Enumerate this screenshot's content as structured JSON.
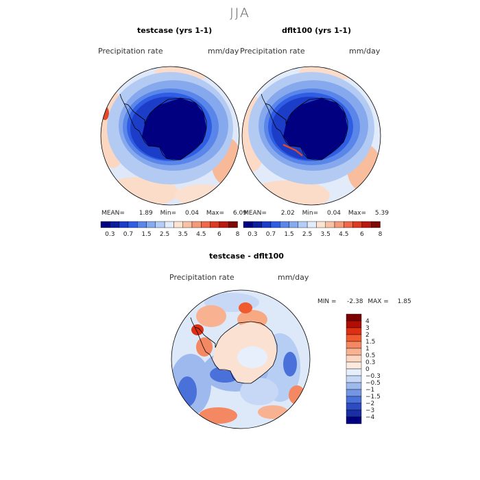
{
  "title": "JJA",
  "panels": [
    {
      "id": "testcase",
      "title": "testcase (yrs 1-1)",
      "variable": "Precipitation rate",
      "units": "mm/day",
      "stats": {
        "mean_label": "MEAN=",
        "mean": "1.89",
        "min_label": "Min=",
        "min": "0.04",
        "max_label": "Max=",
        "max": "6.09"
      }
    },
    {
      "id": "dflt100",
      "title": "dflt100 (yrs 1-1)",
      "variable": "Precipitation rate",
      "units": "mm/day",
      "stats": {
        "mean_label": "MEAN=",
        "mean": "2.02",
        "min_label": "Min=",
        "min": "0.04",
        "max_label": "Max=",
        "max": "5.39"
      }
    },
    {
      "id": "diff",
      "title": "testcase - dflt100",
      "variable": "Precipitation rate",
      "units": "mm/day",
      "stats": {
        "min_label": "MIN =",
        "min": "-2.38",
        "max_label": "MAX =",
        "max": "1.85"
      }
    }
  ],
  "colorbar_abs": {
    "colors": [
      "#000080",
      "#0d1f9e",
      "#1c3dc7",
      "#2f5de3",
      "#5a86ea",
      "#86aaf0",
      "#b4cdf6",
      "#e2ecfb",
      "#fde3d2",
      "#f8c1a3",
      "#f39a78",
      "#ec6a4a",
      "#dd3a22",
      "#b81a12",
      "#7d0a08"
    ],
    "labels": [
      "0.3",
      "0.7",
      "1.5",
      "2.5",
      "3.5",
      "4.5",
      "6",
      "8"
    ]
  },
  "colorbar_diff": {
    "colors": [
      "#7d0000",
      "#b20d05",
      "#dd2f12",
      "#ef5a2e",
      "#f48862",
      "#f8b191",
      "#fcd6c0",
      "#fdeadf",
      "#e6effb",
      "#c6d8f5",
      "#9db9ee",
      "#7295e4",
      "#4a70d9",
      "#2c4cc3",
      "#1a2fa4",
      "#000080"
    ],
    "labels": [
      "4",
      "3",
      "2",
      "1.5",
      "1",
      "0.5",
      "0.3",
      "0",
      "−0.3",
      "−0.5",
      "−1",
      "−1.5",
      "−2",
      "−3",
      "−4"
    ]
  }
}
